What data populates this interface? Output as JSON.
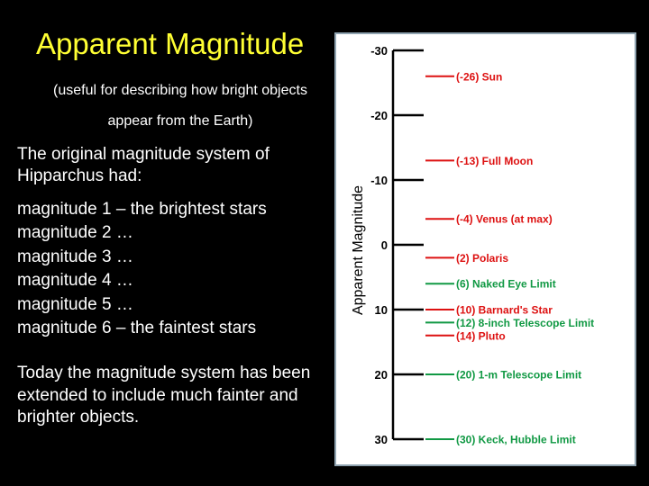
{
  "slide": {
    "title": "Apparent Magnitude",
    "subtitle_line1": "(useful for describing how bright objects",
    "subtitle_line2": "appear from the Earth)",
    "intro": "The original magnitude system of Hipparchus had:",
    "list": [
      "magnitude 1 – the brightest stars",
      "magnitude 2 …",
      "magnitude 3 …",
      "magnitude 4 …",
      "magnitude 5 …",
      "magnitude 6 – the faintest stars"
    ],
    "today": "Today the magnitude system has been extended to include much fainter and brighter objects."
  },
  "chart_data": {
    "type": "scale",
    "ylabel": "Apparent Magnitude",
    "ylim": [
      -30,
      30
    ],
    "ticks": [
      -30,
      -20,
      -10,
      0,
      10,
      20,
      30
    ],
    "tick_labels": [
      "-30",
      "-20",
      "-10",
      "0",
      "10",
      "20",
      "30"
    ],
    "points": [
      {
        "value": -26,
        "label": "(-26) Sun",
        "color": "#dd1111"
      },
      {
        "value": -13,
        "label": "(-13) Full Moon",
        "color": "#dd1111"
      },
      {
        "value": -4,
        "label": "(-4) Venus (at max)",
        "color": "#dd1111"
      },
      {
        "value": 2,
        "label": "(2) Polaris",
        "color": "#dd1111"
      },
      {
        "value": 6,
        "label": "(6) Naked Eye Limit",
        "color": "#119944"
      },
      {
        "value": 10,
        "label": "(10) Barnard's Star",
        "color": "#dd1111"
      },
      {
        "value": 12,
        "label": "(12) 8-inch Telescope Limit",
        "color": "#119944"
      },
      {
        "value": 14,
        "label": "(14) Pluto",
        "color": "#dd1111"
      },
      {
        "value": 20,
        "label": "(20) 1-m Telescope Limit",
        "color": "#119944"
      },
      {
        "value": 30,
        "label": "(30) Keck, Hubble Limit",
        "color": "#119944"
      }
    ]
  }
}
